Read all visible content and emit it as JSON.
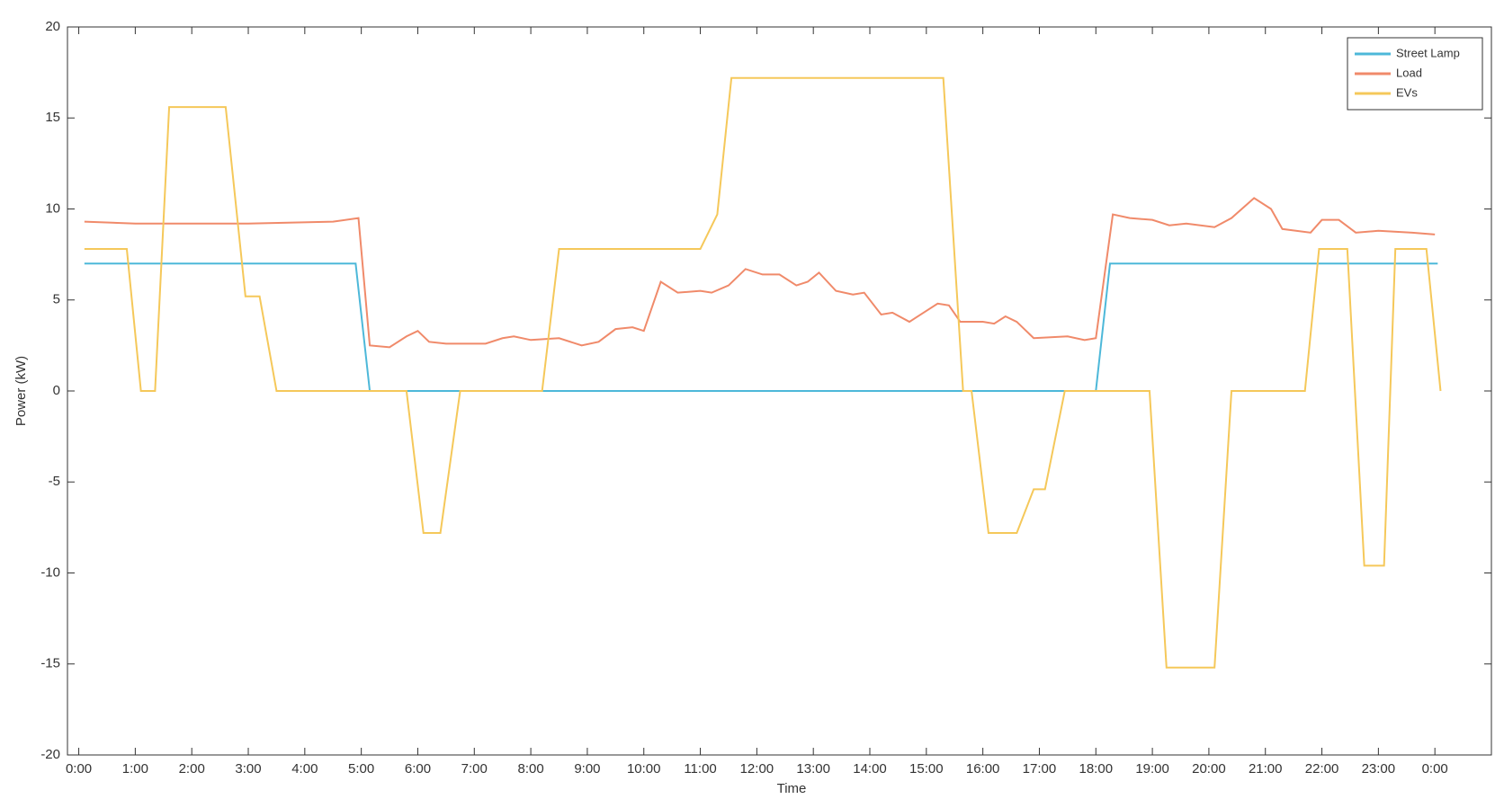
{
  "chart_data": {
    "type": "line",
    "xlabel": "Time",
    "ylabel": "Power (kW)",
    "xlim": [
      -0.2,
      25
    ],
    "ylim": [
      -20,
      20
    ],
    "xticks": [
      {
        "value": 0,
        "label": "0:00"
      },
      {
        "value": 1,
        "label": "1:00"
      },
      {
        "value": 2,
        "label": "2:00"
      },
      {
        "value": 3,
        "label": "3:00"
      },
      {
        "value": 4,
        "label": "4:00"
      },
      {
        "value": 5,
        "label": "5:00"
      },
      {
        "value": 6,
        "label": "6:00"
      },
      {
        "value": 7,
        "label": "7:00"
      },
      {
        "value": 8,
        "label": "8:00"
      },
      {
        "value": 9,
        "label": "9:00"
      },
      {
        "value": 10,
        "label": "10:00"
      },
      {
        "value": 11,
        "label": "11:00"
      },
      {
        "value": 12,
        "label": "12:00"
      },
      {
        "value": 13,
        "label": "13:00"
      },
      {
        "value": 14,
        "label": "14:00"
      },
      {
        "value": 15,
        "label": "15:00"
      },
      {
        "value": 16,
        "label": "16:00"
      },
      {
        "value": 17,
        "label": "17:00"
      },
      {
        "value": 18,
        "label": "18:00"
      },
      {
        "value": 19,
        "label": "19:00"
      },
      {
        "value": 20,
        "label": "20:00"
      },
      {
        "value": 21,
        "label": "21:00"
      },
      {
        "value": 22,
        "label": "22:00"
      },
      {
        "value": 23,
        "label": "23:00"
      },
      {
        "value": 24,
        "label": "0:00"
      }
    ],
    "yticks": [
      -20,
      -15,
      -10,
      -5,
      0,
      5,
      10,
      15,
      20
    ],
    "legend": "northeast",
    "series": [
      {
        "name": "Street Lamp",
        "color": "#4db8d9",
        "x": [
          0.1,
          4.9,
          5.15,
          18.0,
          18.25,
          24.05
        ],
        "values": [
          7,
          7,
          0,
          0,
          7,
          7
        ]
      },
      {
        "name": "Load",
        "color": "#f08a6a",
        "x": [
          0.1,
          1.0,
          2.0,
          3.0,
          4.5,
          4.95,
          5.15,
          5.5,
          5.8,
          6.0,
          6.2,
          6.5,
          7.2,
          7.5,
          7.7,
          8.0,
          8.5,
          8.9,
          9.2,
          9.5,
          9.8,
          10.0,
          10.3,
          10.6,
          11.0,
          11.2,
          11.5,
          11.8,
          12.1,
          12.4,
          12.7,
          12.9,
          13.1,
          13.4,
          13.7,
          13.9,
          14.2,
          14.4,
          14.7,
          14.9,
          15.2,
          15.4,
          15.6,
          16.0,
          16.2,
          16.4,
          16.6,
          16.9,
          17.5,
          17.8,
          18.0,
          18.3,
          18.6,
          19.0,
          19.3,
          19.6,
          20.1,
          20.4,
          20.8,
          21.1,
          21.3,
          21.8,
          22.0,
          22.3,
          22.6,
          23.0,
          23.6,
          24.0
        ],
        "values": [
          9.3,
          9.2,
          9.2,
          9.2,
          9.3,
          9.5,
          2.5,
          2.4,
          3.0,
          3.3,
          2.7,
          2.6,
          2.6,
          2.9,
          3.0,
          2.8,
          2.9,
          2.5,
          2.7,
          3.4,
          3.5,
          3.3,
          6.0,
          5.4,
          5.5,
          5.4,
          5.8,
          6.7,
          6.4,
          6.4,
          5.8,
          6.0,
          6.5,
          5.5,
          5.3,
          5.4,
          4.2,
          4.3,
          3.8,
          4.2,
          4.8,
          4.7,
          3.8,
          3.8,
          3.7,
          4.1,
          3.8,
          2.9,
          3.0,
          2.8,
          2.9,
          9.7,
          9.5,
          9.4,
          9.1,
          9.2,
          9.0,
          9.5,
          10.6,
          10.0,
          8.9,
          8.7,
          9.4,
          9.4,
          8.7,
          8.8,
          8.7,
          8.6
        ]
      },
      {
        "name": "EVs",
        "color": "#f5c85a",
        "x": [
          0.1,
          0.85,
          1.1,
          1.35,
          1.6,
          2.6,
          2.95,
          3.2,
          3.5,
          5.8,
          6.1,
          6.4,
          6.75,
          8.2,
          8.5,
          11.0,
          11.3,
          11.55,
          15.3,
          15.65,
          15.8,
          16.1,
          16.6,
          16.9,
          17.1,
          17.45,
          18.95,
          19.25,
          20.1,
          20.4,
          21.7,
          21.95,
          22.45,
          22.75,
          23.1,
          23.3,
          23.85,
          24.1
        ],
        "values": [
          7.8,
          7.8,
          0,
          0,
          15.6,
          15.6,
          5.2,
          5.2,
          0,
          0,
          -7.8,
          -7.8,
          0,
          0,
          7.8,
          7.8,
          9.7,
          17.2,
          17.2,
          0,
          0,
          -7.8,
          -7.8,
          -5.4,
          -5.4,
          0,
          0,
          -15.2,
          -15.2,
          0,
          0,
          7.8,
          7.8,
          -9.6,
          -9.6,
          7.8,
          7.8,
          0
        ]
      }
    ]
  }
}
